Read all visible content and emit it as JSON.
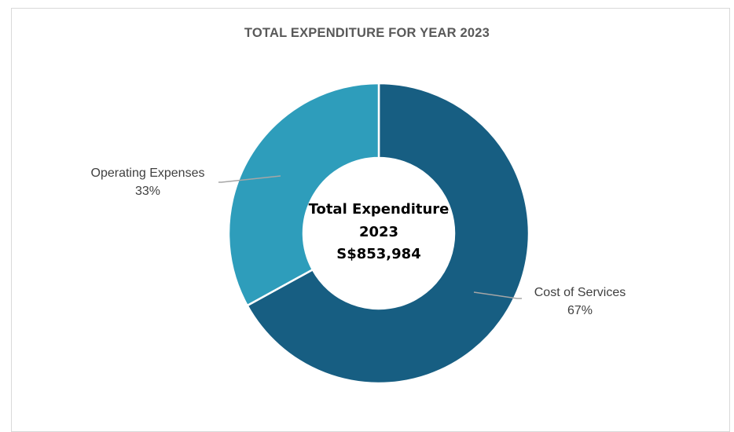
{
  "chart_data": {
    "type": "pie",
    "donut": true,
    "title": "TOTAL EXPENDITURE FOR YEAR 2023",
    "center_text": [
      "Total Expenditure",
      "2023",
      "S$853,984"
    ],
    "slices": [
      {
        "label": "Cost of Services",
        "percent_label": "67%",
        "value": 67,
        "color": "#175e82"
      },
      {
        "label": "Operating Expenses",
        "percent_label": "33%",
        "value": 33,
        "color": "#2e9dbb"
      }
    ],
    "start_angle_deg": 0,
    "direction": "clockwise",
    "slice_border_color": "#ffffff"
  }
}
